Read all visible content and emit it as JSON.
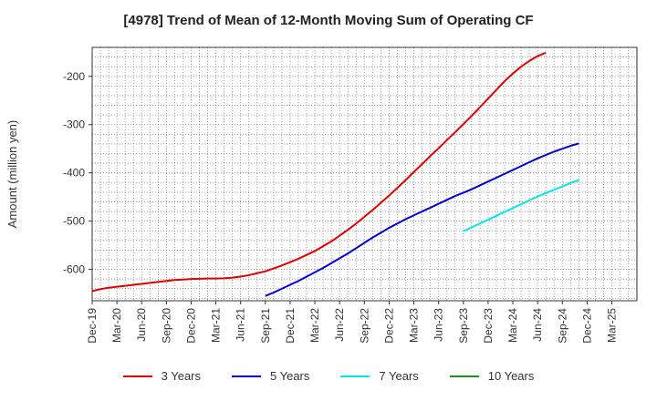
{
  "title": "[4978]  Trend of Mean of 12-Month Moving Sum of Operating CF",
  "chart_data": {
    "type": "line",
    "title": "[4978]  Trend of Mean of 12-Month Moving Sum of Operating CF",
    "xlabel": "",
    "ylabel": "Amount (million yen)",
    "ylim": [
      -665,
      -140
    ],
    "yticks": [
      -200,
      -300,
      -400,
      -500,
      -600
    ],
    "ytick_labels": [
      "-200",
      "-300",
      "-400",
      "-500",
      "-600"
    ],
    "xtick_labels": [
      "Dec-19",
      "Mar-20",
      "Jun-20",
      "Sep-20",
      "Dec-20",
      "Mar-21",
      "Jun-21",
      "Sep-21",
      "Dec-21",
      "Mar-22",
      "Jun-22",
      "Sep-22",
      "Dec-22",
      "Mar-23",
      "Jun-23",
      "Sep-23",
      "Dec-23",
      "Mar-24",
      "Jun-24",
      "Sep-24",
      "Dec-24",
      "Mar-25"
    ],
    "grid": true,
    "legend_position": "bottom",
    "series": [
      {
        "name": "3 Years",
        "color": "#dd0000",
        "start_index": 0,
        "values": [
          -645,
          -641,
          -638,
          -636,
          -634,
          -632,
          -630,
          -628,
          -626,
          -624,
          -622,
          -621,
          -620,
          -619.5,
          -619,
          -619,
          -618.5,
          -617,
          -615,
          -612,
          -608,
          -604,
          -598,
          -592,
          -585,
          -578,
          -570,
          -562,
          -552,
          -542,
          -530,
          -518,
          -505,
          -491,
          -477,
          -462,
          -447,
          -431,
          -415,
          -398,
          -382,
          -365,
          -349,
          -332,
          -316,
          -299,
          -282,
          -264,
          -246,
          -228,
          -210,
          -194,
          -180,
          -168,
          -158,
          -151
        ]
      },
      {
        "name": "5 Years",
        "color": "#0000cc",
        "start_index": 21,
        "values": [
          -655,
          -648,
          -640,
          -632,
          -624,
          -615,
          -606,
          -597,
          -587,
          -577,
          -567,
          -556,
          -545,
          -534,
          -524,
          -514,
          -505,
          -496,
          -488,
          -480,
          -472,
          -464,
          -456,
          -448,
          -441,
          -434,
          -426,
          -418,
          -410,
          -402,
          -394,
          -386,
          -378,
          -370,
          -363,
          -356,
          -350,
          -344,
          -339
        ]
      },
      {
        "name": "7 Years",
        "color": "#00e5ee",
        "start_index": 45,
        "values": [
          -521,
          -513,
          -505,
          -497,
          -489,
          -481,
          -473,
          -465,
          -457,
          -449,
          -442,
          -435,
          -428,
          -421,
          -415
        ]
      },
      {
        "name": "10 Years",
        "color": "#228b22",
        "start_index": 0,
        "values": []
      }
    ]
  }
}
